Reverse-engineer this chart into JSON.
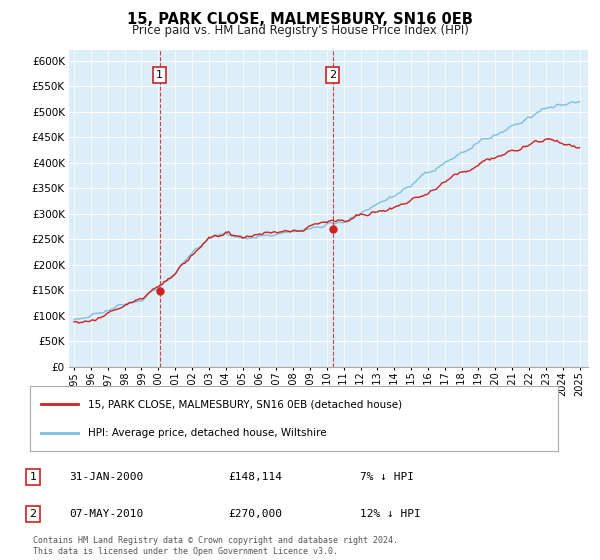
{
  "title": "15, PARK CLOSE, MALMESBURY, SN16 0EB",
  "subtitle": "Price paid vs. HM Land Registry's House Price Index (HPI)",
  "legend_line1": "15, PARK CLOSE, MALMESBURY, SN16 0EB (detached house)",
  "legend_line2": "HPI: Average price, detached house, Wiltshire",
  "transaction1_date": "31-JAN-2000",
  "transaction1_price": "£148,114",
  "transaction1_hpi": "7% ↓ HPI",
  "transaction2_date": "07-MAY-2010",
  "transaction2_price": "£270,000",
  "transaction2_hpi": "12% ↓ HPI",
  "footnote": "Contains HM Land Registry data © Crown copyright and database right 2024.\nThis data is licensed under the Open Government Licence v3.0.",
  "hpi_color": "#7fbfdf",
  "price_color": "#cc2222",
  "plot_bg_color": "#ddeef8",
  "marker1_x": 2000.08,
  "marker1_y": 148114,
  "marker2_x": 2010.35,
  "marker2_y": 270000,
  "ylim": [
    0,
    620000
  ],
  "xlim_start": 1994.7,
  "xlim_end": 2025.5,
  "yticks": [
    0,
    50000,
    100000,
    150000,
    200000,
    250000,
    300000,
    350000,
    400000,
    450000,
    500000,
    550000,
    600000
  ],
  "xticks": [
    1995,
    1996,
    1997,
    1998,
    1999,
    2000,
    2001,
    2002,
    2003,
    2004,
    2005,
    2006,
    2007,
    2008,
    2009,
    2010,
    2011,
    2012,
    2013,
    2014,
    2015,
    2016,
    2017,
    2018,
    2019,
    2020,
    2021,
    2022,
    2023,
    2024,
    2025
  ]
}
